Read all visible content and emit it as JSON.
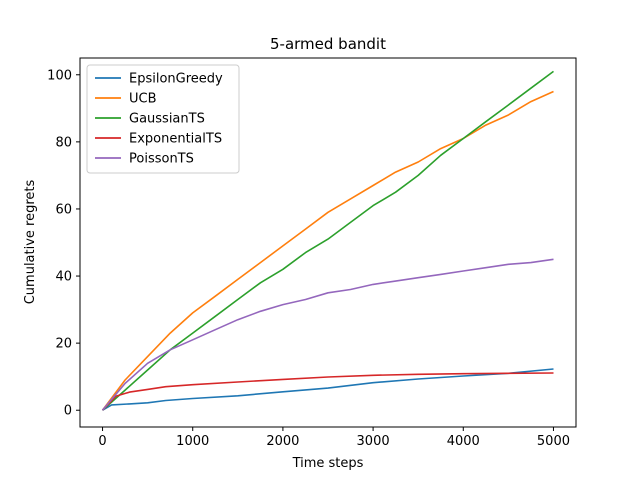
{
  "chart_data": {
    "type": "line",
    "title": "5-armed bandit",
    "xlabel": "Time steps",
    "ylabel": "Cumulative regrets",
    "xlim": [
      -250,
      5250
    ],
    "ylim": [
      -5,
      105
    ],
    "xticks": [
      0,
      1000,
      2000,
      3000,
      4000,
      5000
    ],
    "yticks": [
      0,
      20,
      40,
      60,
      80,
      100
    ],
    "grid": false,
    "legend_position": "top-left",
    "series": [
      {
        "name": "EpsilonGreedy",
        "color": "#1f77b4",
        "x": [
          0,
          100,
          300,
          500,
          700,
          1000,
          1500,
          2000,
          2500,
          3000,
          3500,
          4000,
          4500,
          5000
        ],
        "y": [
          0,
          1.6,
          1.9,
          2.2,
          2.9,
          3.5,
          4.3,
          5.5,
          6.6,
          8.2,
          9.3,
          10.2,
          11.0,
          12.3
        ]
      },
      {
        "name": "UCB",
        "color": "#ff7f0e",
        "x": [
          0,
          250,
          500,
          750,
          1000,
          1250,
          1500,
          1750,
          2000,
          2250,
          2500,
          2750,
          3000,
          3250,
          3500,
          3750,
          4000,
          4250,
          4500,
          4750,
          5000
        ],
        "y": [
          0,
          9,
          16,
          23,
          29,
          34,
          39,
          44,
          49,
          54,
          59,
          63,
          67,
          71,
          74,
          78,
          81,
          85,
          88,
          92,
          95
        ]
      },
      {
        "name": "GaussianTS",
        "color": "#2ca02c",
        "x": [
          0,
          250,
          500,
          750,
          1000,
          1250,
          1500,
          1750,
          2000,
          2250,
          2500,
          2750,
          3000,
          3250,
          3500,
          3750,
          4000,
          4250,
          4500,
          4750,
          5000
        ],
        "y": [
          0,
          6,
          12,
          18,
          23,
          28,
          33,
          38,
          42,
          47,
          51,
          56,
          61,
          65,
          70,
          76,
          81,
          86,
          91,
          96,
          101
        ]
      },
      {
        "name": "ExponentialTS",
        "color": "#d62728",
        "x": [
          0,
          150,
          300,
          500,
          700,
          1000,
          1500,
          2000,
          2500,
          3000,
          3500,
          4000,
          4500,
          5000
        ],
        "y": [
          0,
          4.2,
          5.4,
          6.2,
          7.0,
          7.6,
          8.4,
          9.2,
          9.9,
          10.4,
          10.7,
          10.9,
          11.0,
          11.1
        ]
      },
      {
        "name": "PoissonTS",
        "color": "#9467bd",
        "x": [
          0,
          250,
          500,
          750,
          1000,
          1250,
          1500,
          1750,
          2000,
          2250,
          2500,
          2750,
          3000,
          3250,
          3500,
          3750,
          4000,
          4250,
          4500,
          4750,
          5000
        ],
        "y": [
          0,
          8,
          14,
          18,
          21,
          24,
          27,
          29.5,
          31.5,
          33,
          35,
          36,
          37.5,
          38.5,
          39.5,
          40.5,
          41.5,
          42.5,
          43.5,
          44,
          45
        ]
      }
    ]
  }
}
